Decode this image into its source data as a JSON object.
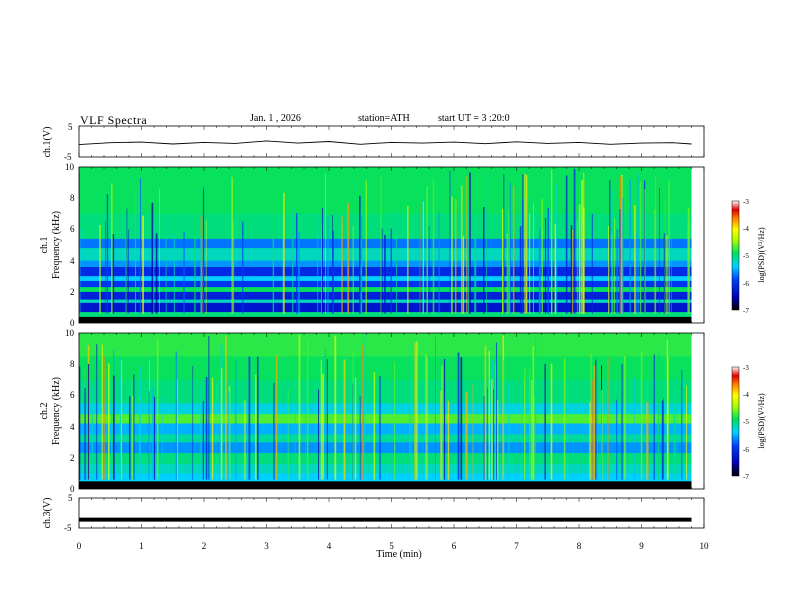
{
  "header": {
    "title": "VLF Spectra",
    "date": "Jan. 1 , 2026",
    "station": "station=ATH",
    "start": "start UT = 3 :20:0"
  },
  "chart_data": [
    {
      "type": "line",
      "panel": "ch1-waveform",
      "ylabel": "ch.1(V)",
      "ylim": [
        -5,
        5
      ],
      "yticks": [
        "5",
        "-5"
      ],
      "x": [
        0,
        0.5,
        1,
        1.5,
        2,
        2.5,
        3,
        3.5,
        4,
        4.5,
        5,
        5.5,
        6,
        6.5,
        7,
        7.5,
        8,
        8.5,
        9,
        9.5,
        9.8
      ],
      "y": [
        -1.0,
        -0.4,
        -0.2,
        -0.8,
        -0.3,
        -0.6,
        0.2,
        -0.5,
        0.0,
        -0.9,
        -0.3,
        -0.5,
        -0.2,
        -0.7,
        -0.1,
        -0.6,
        -0.3,
        -0.9,
        -0.5,
        -0.4,
        -0.8
      ]
    },
    {
      "type": "heatmap",
      "panel": "ch1-spectrogram",
      "ylabel": "ch.1",
      "ylabel2": "Frequency (kHz)",
      "ylim": [
        0,
        10
      ],
      "yticks": [
        "0",
        "2",
        "4",
        "6",
        "8",
        "10"
      ],
      "xlim": [
        0,
        9.8
      ],
      "colorbar": {
        "label": "log(PSD)(V²/Hz)",
        "range": [
          -7,
          -3
        ],
        "ticks": [
          "-3",
          "-4",
          "-5",
          "-6",
          "-7"
        ]
      },
      "bands": [
        {
          "from": 0.0,
          "to": 0.4,
          "level": -7.0
        },
        {
          "from": 0.4,
          "to": 0.7,
          "level": -5.0
        },
        {
          "from": 0.7,
          "to": 1.3,
          "level": -6.3
        },
        {
          "from": 1.3,
          "to": 1.5,
          "level": -5.2
        },
        {
          "from": 1.5,
          "to": 2.0,
          "level": -6.2
        },
        {
          "from": 2.0,
          "to": 2.3,
          "level": -4.9
        },
        {
          "from": 2.3,
          "to": 2.7,
          "level": -6.0
        },
        {
          "from": 2.7,
          "to": 3.0,
          "level": -5.4
        },
        {
          "from": 3.0,
          "to": 3.6,
          "level": -6.1
        },
        {
          "from": 3.6,
          "to": 4.0,
          "level": -5.6
        },
        {
          "from": 4.0,
          "to": 4.8,
          "level": -5.2
        },
        {
          "from": 4.8,
          "to": 5.4,
          "level": -5.7
        },
        {
          "from": 5.4,
          "to": 7.0,
          "level": -5.0
        },
        {
          "from": 7.0,
          "to": 8.5,
          "level": -4.9
        },
        {
          "from": 8.5,
          "to": 10.0,
          "level": -4.9
        }
      ]
    },
    {
      "type": "heatmap",
      "panel": "ch2-spectrogram",
      "ylabel": "ch.2",
      "ylabel2": "Frequency (kHz)",
      "ylim": [
        0,
        10
      ],
      "yticks": [
        "0",
        "2",
        "4",
        "6",
        "8",
        "10"
      ],
      "xlim": [
        0,
        9.8
      ],
      "colorbar": {
        "label": "log(PSD)(V²/Hz)",
        "range": [
          -7,
          -3
        ],
        "ticks": [
          "-3",
          "-4",
          "-5",
          "-6",
          "-7"
        ]
      },
      "bands": [
        {
          "from": 0.0,
          "to": 0.5,
          "level": -7.0
        },
        {
          "from": 0.5,
          "to": 1.0,
          "level": -5.4
        },
        {
          "from": 1.0,
          "to": 1.6,
          "level": -5.2
        },
        {
          "from": 1.6,
          "to": 2.3,
          "level": -5.0
        },
        {
          "from": 2.3,
          "to": 3.0,
          "level": -5.6
        },
        {
          "from": 3.0,
          "to": 3.5,
          "level": -5.1
        },
        {
          "from": 3.5,
          "to": 4.2,
          "level": -5.5
        },
        {
          "from": 4.2,
          "to": 4.8,
          "level": -4.7
        },
        {
          "from": 4.8,
          "to": 5.5,
          "level": -5.3
        },
        {
          "from": 5.5,
          "to": 7.0,
          "level": -5.0
        },
        {
          "from": 7.0,
          "to": 8.5,
          "level": -4.9
        },
        {
          "from": 8.5,
          "to": 10.0,
          "level": -4.8
        }
      ]
    },
    {
      "type": "line",
      "panel": "ch3-waveform",
      "ylabel": "ch.3(V)",
      "ylim": [
        -5,
        5
      ],
      "yticks": [
        "5",
        "-5"
      ],
      "xlabel": "Time (min)",
      "xlim": [
        0,
        10
      ],
      "xticks": [
        "0",
        "1",
        "2",
        "3",
        "4",
        "5",
        "6",
        "7",
        "8",
        "9",
        "10"
      ],
      "x": [
        0,
        9.8
      ],
      "y": [
        -2.2,
        -2.2
      ]
    }
  ]
}
